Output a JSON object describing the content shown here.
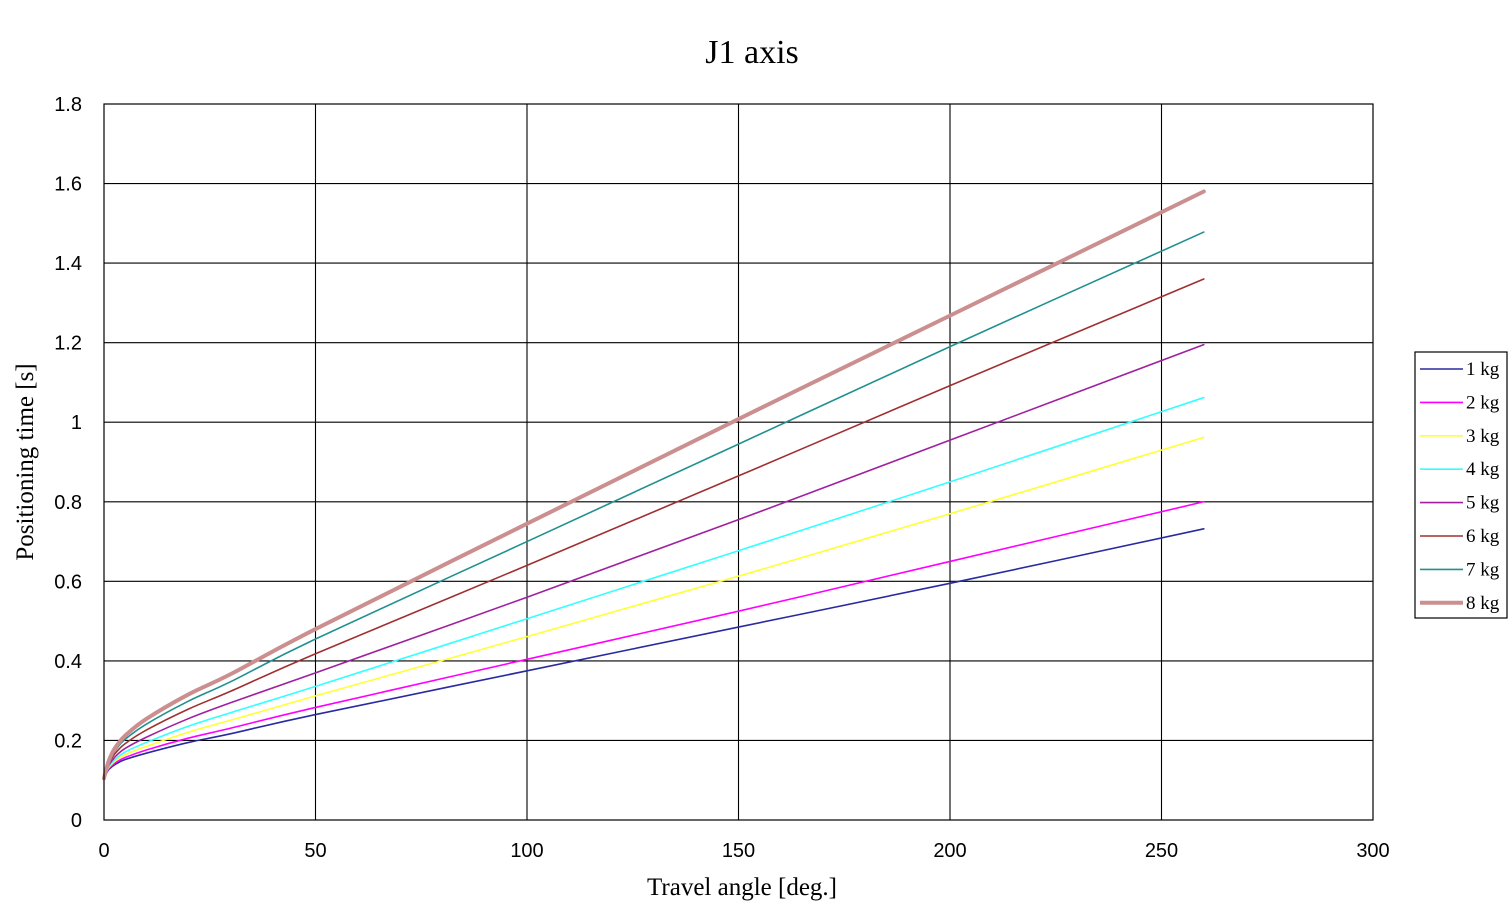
{
  "chart_data": {
    "type": "line",
    "title": "J1 axis",
    "xlabel": "Travel angle [deg.]",
    "ylabel": "Positioning time [s]",
    "xlim": [
      0,
      300
    ],
    "ylim": [
      0,
      1.8
    ],
    "x_ticks": [
      "0",
      "50",
      "100",
      "150",
      "200",
      "250",
      "300"
    ],
    "y_ticks": [
      "0",
      "0.2",
      "0.4",
      "0.6",
      "0.8",
      "1",
      "1.2",
      "1.4",
      "1.6",
      "1.8"
    ],
    "grid": true,
    "legend_position": "right",
    "x": [
      0,
      1,
      2,
      3,
      5,
      10,
      20,
      30,
      50,
      100,
      150,
      200,
      260
    ],
    "series": [
      {
        "name": "1 kg",
        "color": "#2a2aa0",
        "values": [
          0.105,
          0.125,
          0.135,
          0.142,
          0.152,
          0.168,
          0.195,
          0.217,
          0.265,
          0.375,
          0.485,
          0.595,
          0.732
        ]
      },
      {
        "name": "2 kg",
        "color": "#ff00ff",
        "values": [
          0.105,
          0.127,
          0.138,
          0.146,
          0.157,
          0.176,
          0.206,
          0.231,
          0.283,
          0.404,
          0.525,
          0.65,
          0.8
        ]
      },
      {
        "name": "3 kg",
        "color": "#ffff33",
        "values": [
          0.105,
          0.13,
          0.142,
          0.151,
          0.164,
          0.185,
          0.221,
          0.251,
          0.312,
          0.461,
          0.613,
          0.77,
          0.962
        ]
      },
      {
        "name": "4 kg",
        "color": "#33ffff",
        "values": [
          0.105,
          0.132,
          0.146,
          0.156,
          0.171,
          0.195,
          0.236,
          0.27,
          0.336,
          0.506,
          0.677,
          0.85,
          1.062
        ]
      },
      {
        "name": "5 kg",
        "color": "#a020a0",
        "values": [
          0.105,
          0.135,
          0.151,
          0.163,
          0.18,
          0.208,
          0.255,
          0.295,
          0.37,
          0.56,
          0.755,
          0.955,
          1.195
        ]
      },
      {
        "name": "6 kg",
        "color": "#a03030",
        "values": [
          0.105,
          0.139,
          0.158,
          0.172,
          0.192,
          0.226,
          0.279,
          0.324,
          0.418,
          0.64,
          0.865,
          1.092,
          1.36
        ]
      },
      {
        "name": "7 kg",
        "color": "#209090",
        "values": [
          0.105,
          0.142,
          0.164,
          0.18,
          0.203,
          0.241,
          0.299,
          0.348,
          0.455,
          0.7,
          0.945,
          1.19,
          1.478
        ]
      },
      {
        "name": "8 kg",
        "color": "#cc8f8f",
        "values": [
          0.105,
          0.145,
          0.17,
          0.187,
          0.212,
          0.254,
          0.316,
          0.367,
          0.48,
          0.745,
          1.008,
          1.268,
          1.58
        ]
      }
    ]
  }
}
